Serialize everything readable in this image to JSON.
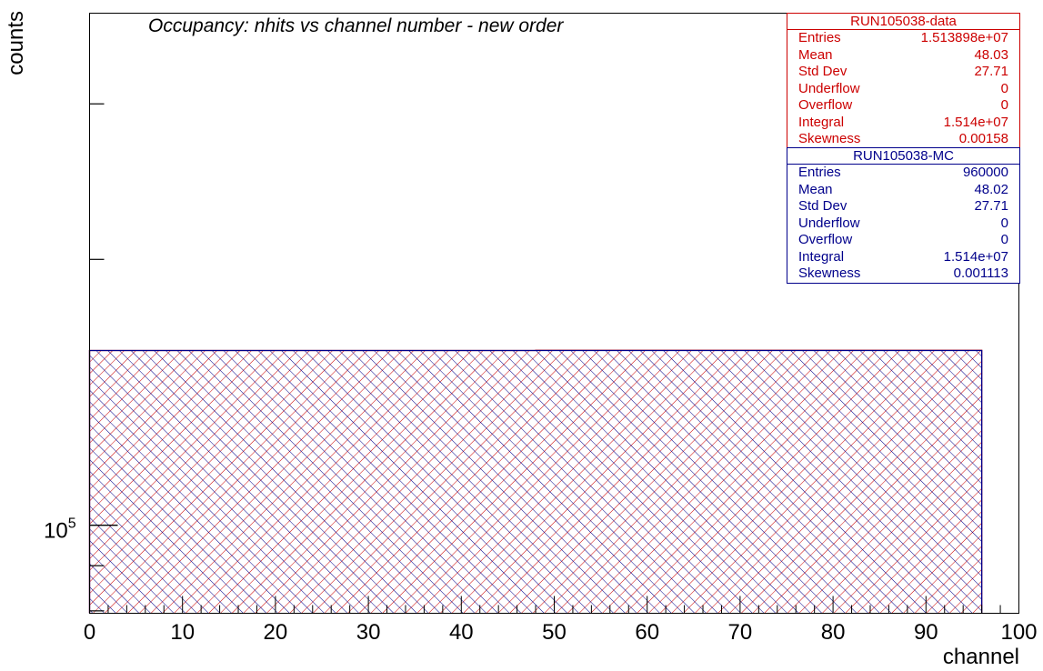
{
  "chart_data": {
    "type": "histogram",
    "title": "Occupancy: nhits vs channel number - new order",
    "xlabel": "channel",
    "ylabel": "counts",
    "xlim": [
      0,
      100
    ],
    "ylog": true,
    "x_ticks": [
      "0",
      "10",
      "20",
      "30",
      "40",
      "50",
      "60",
      "70",
      "80",
      "90",
      "100"
    ],
    "y_ticks": [
      {
        "label": "10",
        "exponent": "5",
        "value": 100000
      }
    ],
    "grid": false,
    "bins": {
      "x_start": 0,
      "x_end": 96,
      "step": 1
    },
    "series": [
      {
        "name": "RUN105038-data",
        "color": "#cc0000",
        "fill": "hatched",
        "segments": [
          {
            "x_start": 0,
            "x_end": 48,
            "value": 157700
          },
          {
            "x_start": 48,
            "x_end": 96,
            "value": 157800
          }
        ]
      },
      {
        "name": "RUN105038-MC",
        "color": "#00008b",
        "fill": "hatched",
        "segments": [
          {
            "x_start": 0,
            "x_end": 96,
            "value": 157700
          }
        ]
      }
    ]
  },
  "stats_boxes": [
    {
      "title": "RUN105038-data",
      "color": "#cc0000",
      "rows": [
        {
          "label": "Entries",
          "value": "1.513898e+07"
        },
        {
          "label": "Mean",
          "value": "48.03"
        },
        {
          "label": "Std Dev",
          "value": "27.71"
        },
        {
          "label": "Underflow",
          "value": "0"
        },
        {
          "label": "Overflow",
          "value": "0"
        },
        {
          "label": "Integral",
          "value": "1.514e+07"
        },
        {
          "label": "Skewness",
          "value": "0.00158"
        }
      ]
    },
    {
      "title": "RUN105038-MC",
      "color": "#00008b",
      "rows": [
        {
          "label": "Entries",
          "value": "960000"
        },
        {
          "label": "Mean",
          "value": "48.02"
        },
        {
          "label": "Std Dev",
          "value": "27.71"
        },
        {
          "label": "Underflow",
          "value": "0"
        },
        {
          "label": "Overflow",
          "value": "0"
        },
        {
          "label": "Integral",
          "value": "1.514e+07"
        },
        {
          "label": "Skewness",
          "value": "0.001113"
        }
      ]
    }
  ]
}
